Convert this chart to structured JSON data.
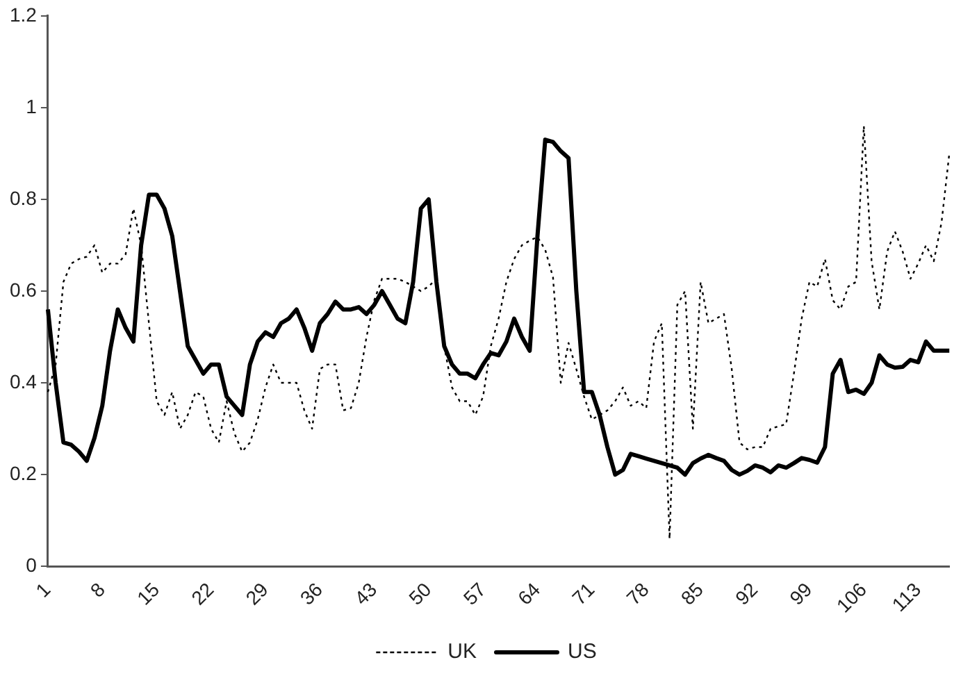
{
  "chart_data": {
    "type": "line",
    "categories": [
      "1",
      null,
      null,
      null,
      null,
      null,
      null,
      "8",
      null,
      null,
      null,
      null,
      null,
      null,
      "15",
      null,
      null,
      null,
      null,
      null,
      null,
      "22",
      null,
      null,
      null,
      null,
      null,
      null,
      "29",
      null,
      null,
      null,
      null,
      null,
      null,
      "36",
      null,
      null,
      null,
      null,
      null,
      null,
      "43",
      null,
      null,
      null,
      null,
      null,
      null,
      "50",
      null,
      null,
      null,
      null,
      null,
      null,
      "57",
      null,
      null,
      null,
      null,
      null,
      null,
      "64",
      null,
      null,
      null,
      null,
      null,
      null,
      "71",
      null,
      null,
      null,
      null,
      null,
      null,
      "78",
      null,
      null,
      null,
      null,
      null,
      null,
      "85",
      null,
      null,
      null,
      null,
      null,
      null,
      "92",
      null,
      null,
      null,
      null,
      null,
      null,
      "99",
      null,
      null,
      null,
      null,
      null,
      null,
      "106",
      null,
      null,
      null,
      null,
      null,
      null,
      "113",
      null,
      null,
      null,
      null
    ],
    "series": [
      {
        "name": "UK",
        "color": "#000000",
        "line_style": "dotted",
        "values": [
          0.38,
          0.44,
          0.62,
          0.66,
          0.67,
          0.675,
          0.7,
          0.64,
          0.66,
          0.66,
          0.68,
          0.78,
          0.7,
          0.53,
          0.36,
          0.33,
          0.38,
          0.3,
          0.33,
          0.38,
          0.37,
          0.3,
          0.27,
          0.36,
          0.29,
          0.25,
          0.27,
          0.32,
          0.39,
          0.44,
          0.4,
          0.4,
          0.4,
          0.34,
          0.3,
          0.43,
          0.44,
          0.44,
          0.34,
          0.345,
          0.4,
          0.5,
          0.58,
          0.627,
          0.627,
          0.627,
          0.62,
          0.61,
          0.6,
          0.61,
          0.627,
          0.48,
          0.39,
          0.36,
          0.36,
          0.33,
          0.37,
          0.48,
          0.54,
          0.62,
          0.67,
          0.7,
          0.71,
          0.718,
          0.69,
          0.63,
          0.4,
          0.487,
          0.43,
          0.37,
          0.32,
          0.33,
          0.34,
          0.36,
          0.39,
          0.35,
          0.36,
          0.345,
          0.49,
          0.53,
          0.06,
          0.57,
          0.6,
          0.3,
          0.62,
          0.53,
          0.54,
          0.55,
          0.43,
          0.27,
          0.255,
          0.26,
          0.26,
          0.3,
          0.305,
          0.31,
          0.42,
          0.54,
          0.62,
          0.61,
          0.67,
          0.58,
          0.56,
          0.61,
          0.62,
          0.96,
          0.665,
          0.56,
          0.686,
          0.73,
          0.686,
          0.627,
          0.66,
          0.7,
          0.665,
          0.75,
          0.9
        ]
      },
      {
        "name": "US",
        "color": "#000000",
        "line_style": "solid",
        "values": [
          0.56,
          0.4,
          0.27,
          0.265,
          0.25,
          0.23,
          0.28,
          0.35,
          0.47,
          0.56,
          0.52,
          0.49,
          0.7,
          0.81,
          0.81,
          0.78,
          0.72,
          0.6,
          0.48,
          0.45,
          0.42,
          0.44,
          0.44,
          0.37,
          0.35,
          0.33,
          0.44,
          0.49,
          0.51,
          0.5,
          0.53,
          0.54,
          0.56,
          0.52,
          0.47,
          0.53,
          0.55,
          0.577,
          0.56,
          0.56,
          0.565,
          0.55,
          0.57,
          0.6,
          0.57,
          0.54,
          0.53,
          0.62,
          0.78,
          0.8,
          0.62,
          0.48,
          0.44,
          0.42,
          0.42,
          0.41,
          0.44,
          0.465,
          0.46,
          0.49,
          0.54,
          0.5,
          0.47,
          0.72,
          0.93,
          0.925,
          0.905,
          0.89,
          0.6,
          0.38,
          0.38,
          0.33,
          0.26,
          0.2,
          0.21,
          0.245,
          0.24,
          0.235,
          0.23,
          0.225,
          0.22,
          0.215,
          0.2,
          0.225,
          0.235,
          0.243,
          0.236,
          0.23,
          0.21,
          0.2,
          0.208,
          0.22,
          0.215,
          0.205,
          0.22,
          0.215,
          0.225,
          0.236,
          0.232,
          0.226,
          0.26,
          0.42,
          0.45,
          0.38,
          0.385,
          0.376,
          0.4,
          0.46,
          0.44,
          0.433,
          0.435,
          0.45,
          0.445,
          0.49,
          0.47,
          0.47,
          0.47
        ]
      }
    ],
    "ylim": [
      0,
      1.2
    ],
    "yticks": [
      0,
      0.2,
      0.4,
      0.6,
      0.8,
      1,
      1.2
    ],
    "grid": false,
    "legend": "bottom",
    "marker": "none"
  }
}
